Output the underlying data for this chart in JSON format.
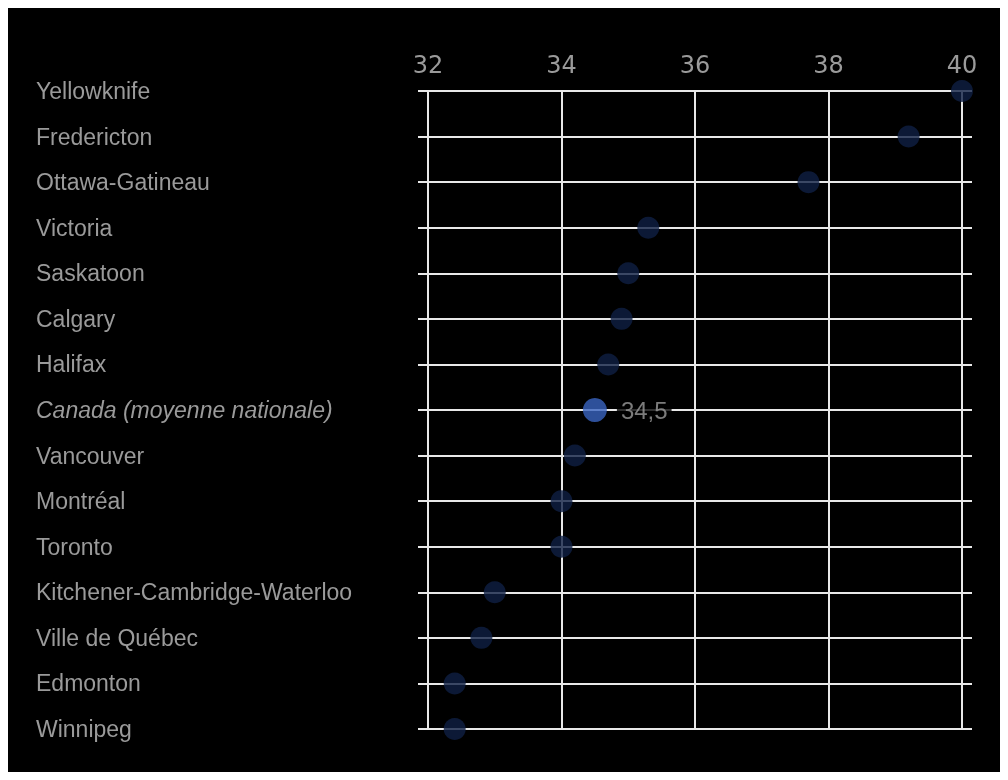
{
  "chart_data": {
    "type": "scatter",
    "orientation": "horizontal",
    "categories": [
      "Yellowknife",
      "Fredericton",
      "Ottawa-Gatineau",
      "Victoria",
      "Saskatoon",
      "Calgary",
      "Halifax",
      "Canada (moyenne nationale)",
      "Vancouver",
      "Montréal",
      "Toronto",
      "Kitchener-Cambridge-Waterloo",
      "Ville de Québec",
      "Edmonton",
      "Winnipeg"
    ],
    "values": [
      40.0,
      39.2,
      37.7,
      35.3,
      35.0,
      34.9,
      34.7,
      34.5,
      34.2,
      34.0,
      34.0,
      33.0,
      32.8,
      32.4,
      32.4
    ],
    "colors": [
      "#0f1f44",
      "#0f1f44",
      "#0f1f44",
      "#0f1f44",
      "#0f1f44",
      "#0f1f44",
      "#0f1f44",
      "#3a64c0",
      "#0f1f44",
      "#0f1f44",
      "#0f1f44",
      "#0f1f44",
      "#0f1f44",
      "#0f1f44",
      "#0f1f44"
    ],
    "value_labels": [
      null,
      null,
      null,
      null,
      null,
      null,
      null,
      "34,5",
      null,
      null,
      null,
      null,
      null,
      null,
      null
    ],
    "xlim": [
      31.85,
      40.15
    ],
    "xticks": [
      32,
      34,
      36,
      38,
      40
    ],
    "grid": true,
    "marker": "circle"
  }
}
